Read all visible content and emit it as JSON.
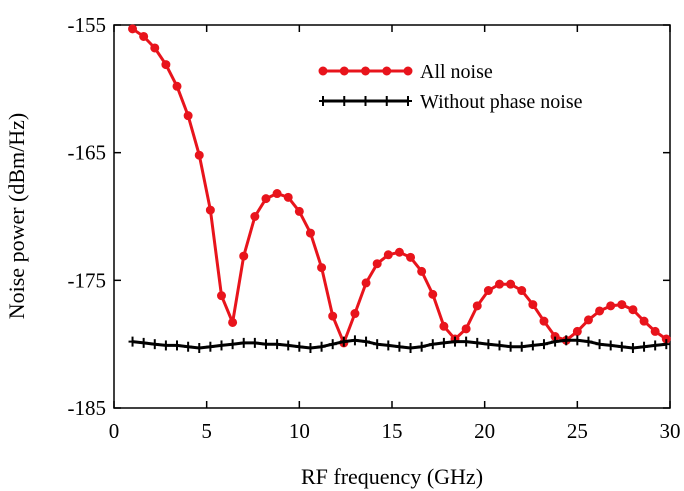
{
  "chart_data": {
    "type": "line",
    "xlabel": "RF frequency (GHz)",
    "ylabel": "Noise power (dBm/Hz)",
    "xlim": [
      0,
      30
    ],
    "ylim": [
      -185,
      -155
    ],
    "xticks": [
      0,
      5,
      10,
      15,
      20,
      25,
      30
    ],
    "yticks": [
      -185,
      -175,
      -165,
      -155
    ],
    "grid": false,
    "legend_position": "top-right",
    "series": [
      {
        "name": "All noise",
        "color": "#e8141c",
        "marker": "circle",
        "x": [
          1.0,
          1.6,
          2.2,
          2.8,
          3.4,
          4.0,
          4.6,
          5.2,
          5.8,
          6.4,
          7.0,
          7.6,
          8.2,
          8.8,
          9.4,
          10.0,
          10.6,
          11.2,
          11.8,
          12.4,
          13.0,
          13.6,
          14.2,
          14.8,
          15.4,
          16.0,
          16.6,
          17.2,
          17.8,
          18.4,
          19.0,
          19.6,
          20.2,
          20.8,
          21.4,
          22.0,
          22.6,
          23.2,
          23.8,
          24.4,
          25.0,
          25.6,
          26.2,
          26.8,
          27.4,
          28.0,
          28.6,
          29.2,
          29.8
        ],
        "y": [
          -155.3,
          -155.9,
          -156.8,
          -158.1,
          -159.8,
          -162.1,
          -165.2,
          -169.5,
          -176.2,
          -178.3,
          -173.1,
          -170.0,
          -168.6,
          -168.2,
          -168.5,
          -169.6,
          -171.3,
          -174.0,
          -177.8,
          -179.9,
          -177.6,
          -175.2,
          -173.7,
          -173.0,
          -172.8,
          -173.2,
          -174.3,
          -176.1,
          -178.6,
          -179.6,
          -178.8,
          -177.0,
          -175.8,
          -175.3,
          -175.3,
          -175.8,
          -176.9,
          -178.2,
          -179.4,
          -179.7,
          -179.0,
          -178.1,
          -177.4,
          -177.0,
          -176.9,
          -177.3,
          -178.2,
          -179.0,
          -179.6
        ]
      },
      {
        "name": "Without phase noise",
        "color": "#000000",
        "marker": "plus",
        "x": [
          1.0,
          1.6,
          2.2,
          2.8,
          3.4,
          4.0,
          4.6,
          5.2,
          5.8,
          6.4,
          7.0,
          7.6,
          8.2,
          8.8,
          9.4,
          10.0,
          10.6,
          11.2,
          11.8,
          12.4,
          13.0,
          13.6,
          14.2,
          14.8,
          15.4,
          16.0,
          16.6,
          17.2,
          17.8,
          18.4,
          19.0,
          19.6,
          20.2,
          20.8,
          21.4,
          22.0,
          22.6,
          23.2,
          23.8,
          24.4,
          25.0,
          25.6,
          26.2,
          26.8,
          27.4,
          28.0,
          28.6,
          29.2,
          29.8
        ],
        "y": [
          -179.8,
          -179.9,
          -180.0,
          -180.1,
          -180.1,
          -180.2,
          -180.3,
          -180.2,
          -180.1,
          -180.0,
          -179.9,
          -179.9,
          -180.0,
          -180.0,
          -180.1,
          -180.2,
          -180.3,
          -180.2,
          -180.0,
          -179.8,
          -179.7,
          -179.8,
          -180.0,
          -180.1,
          -180.2,
          -180.3,
          -180.2,
          -180.0,
          -179.9,
          -179.8,
          -179.8,
          -179.9,
          -180.0,
          -180.1,
          -180.2,
          -180.2,
          -180.1,
          -180.0,
          -179.8,
          -179.7,
          -179.7,
          -179.8,
          -180.0,
          -180.1,
          -180.2,
          -180.3,
          -180.2,
          -180.1,
          -180.0
        ]
      }
    ]
  }
}
